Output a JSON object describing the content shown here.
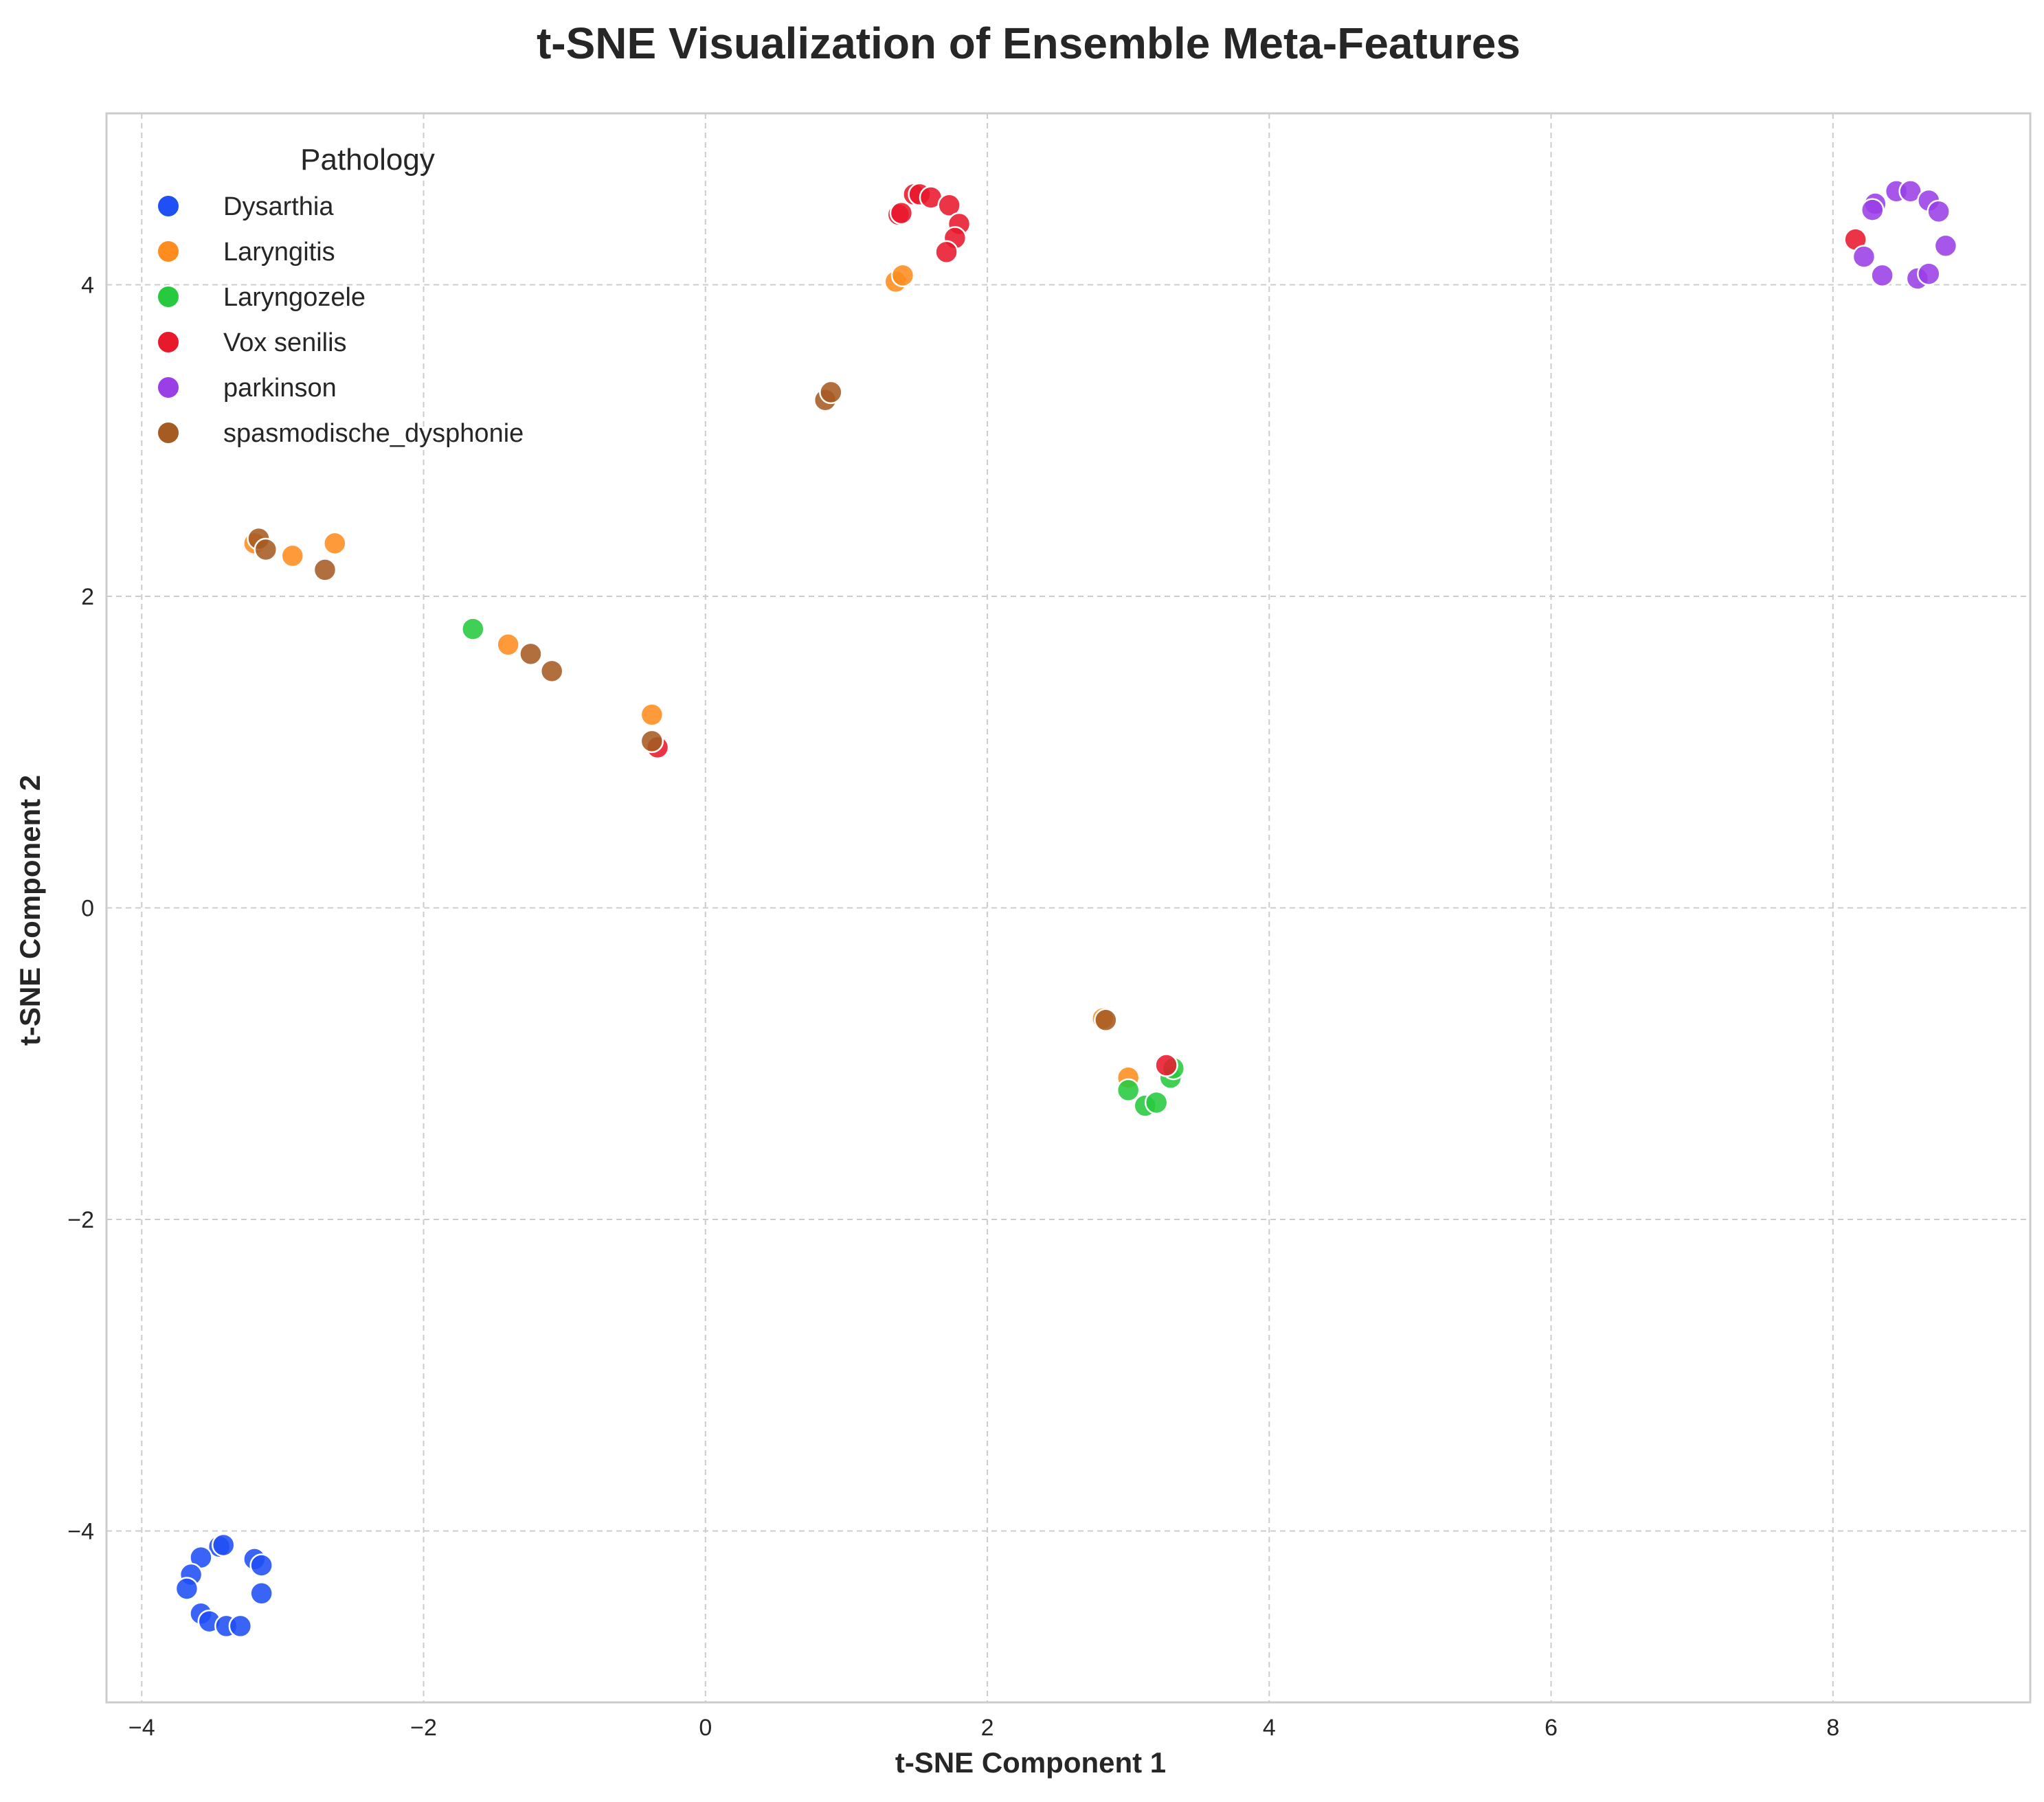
{
  "chart_data": {
    "type": "scatter",
    "title": "t-SNE Visualization of Ensemble Meta-Features",
    "xlabel": "t-SNE Component 1",
    "ylabel": "t-SNE Component 2",
    "xlim": [
      -4.25,
      9.4
    ],
    "ylim": [
      -5.1,
      5.1
    ],
    "xticks": [
      -4,
      -2,
      0,
      2,
      4,
      6,
      8
    ],
    "yticks": [
      -4,
      -2,
      0,
      2,
      4
    ],
    "grid": true,
    "legend": {
      "title": "Pathology",
      "placement": "top-left"
    },
    "series": [
      {
        "name": "Dysarthia",
        "color": "#1f4ff5",
        "points": [
          {
            "x": -3.45,
            "y": -4.1
          },
          {
            "x": -3.42,
            "y": -4.09
          },
          {
            "x": -3.58,
            "y": -4.17
          },
          {
            "x": -3.2,
            "y": -4.18
          },
          {
            "x": -3.15,
            "y": -4.22
          },
          {
            "x": -3.65,
            "y": -4.28
          },
          {
            "x": -3.68,
            "y": -4.37
          },
          {
            "x": -3.15,
            "y": -4.4
          },
          {
            "x": -3.58,
            "y": -4.53
          },
          {
            "x": -3.52,
            "y": -4.58
          },
          {
            "x": -3.4,
            "y": -4.61
          },
          {
            "x": -3.3,
            "y": -4.61
          }
        ]
      },
      {
        "name": "Laryngitis",
        "color": "#ff8c1f",
        "points": [
          {
            "x": -3.2,
            "y": 2.34
          },
          {
            "x": -2.93,
            "y": 2.26
          },
          {
            "x": -2.63,
            "y": 2.34
          },
          {
            "x": -1.4,
            "y": 1.69
          },
          {
            "x": -0.38,
            "y": 1.24
          },
          {
            "x": 1.35,
            "y": 4.02
          },
          {
            "x": 1.4,
            "y": 4.06
          },
          {
            "x": 2.82,
            "y": -0.71
          },
          {
            "x": 3.0,
            "y": -1.09
          }
        ]
      },
      {
        "name": "Laryngozele",
        "color": "#27c93f",
        "points": [
          {
            "x": -1.65,
            "y": 1.79
          },
          {
            "x": 3.0,
            "y": -1.17
          },
          {
            "x": 3.12,
            "y": -1.27
          },
          {
            "x": 3.2,
            "y": -1.25
          },
          {
            "x": 3.3,
            "y": -1.09
          },
          {
            "x": 3.32,
            "y": -1.03
          }
        ]
      },
      {
        "name": "Vox senilis",
        "color": "#e8192c",
        "points": [
          {
            "x": 1.37,
            "y": 4.45
          },
          {
            "x": 1.39,
            "y": 4.46
          },
          {
            "x": 1.48,
            "y": 4.58
          },
          {
            "x": 1.52,
            "y": 4.58
          },
          {
            "x": 1.6,
            "y": 4.56
          },
          {
            "x": 1.73,
            "y": 4.51
          },
          {
            "x": 1.8,
            "y": 4.39
          },
          {
            "x": 1.77,
            "y": 4.3
          },
          {
            "x": 1.71,
            "y": 4.21
          },
          {
            "x": -0.34,
            "y": 1.03
          },
          {
            "x": 3.27,
            "y": -1.01
          },
          {
            "x": 8.16,
            "y": 4.29
          }
        ]
      },
      {
        "name": "parkinson",
        "color": "#9a3fe6",
        "points": [
          {
            "x": 8.45,
            "y": 4.6
          },
          {
            "x": 8.55,
            "y": 4.6
          },
          {
            "x": 8.3,
            "y": 4.52
          },
          {
            "x": 8.28,
            "y": 4.48
          },
          {
            "x": 8.68,
            "y": 4.54
          },
          {
            "x": 8.75,
            "y": 4.47
          },
          {
            "x": 8.8,
            "y": 4.25
          },
          {
            "x": 8.22,
            "y": 4.18
          },
          {
            "x": 8.35,
            "y": 4.06
          },
          {
            "x": 8.6,
            "y": 4.04
          },
          {
            "x": 8.68,
            "y": 4.07
          }
        ]
      },
      {
        "name": "spasmodische_dysphonie",
        "color": "#a55b22",
        "points": [
          {
            "x": -3.17,
            "y": 2.37
          },
          {
            "x": -3.12,
            "y": 2.3
          },
          {
            "x": -2.7,
            "y": 2.17
          },
          {
            "x": -1.24,
            "y": 1.63
          },
          {
            "x": -1.09,
            "y": 1.52
          },
          {
            "x": -0.38,
            "y": 1.07
          },
          {
            "x": 0.85,
            "y": 3.26
          },
          {
            "x": 0.89,
            "y": 3.31
          },
          {
            "x": 2.84,
            "y": -0.72
          }
        ]
      }
    ]
  }
}
